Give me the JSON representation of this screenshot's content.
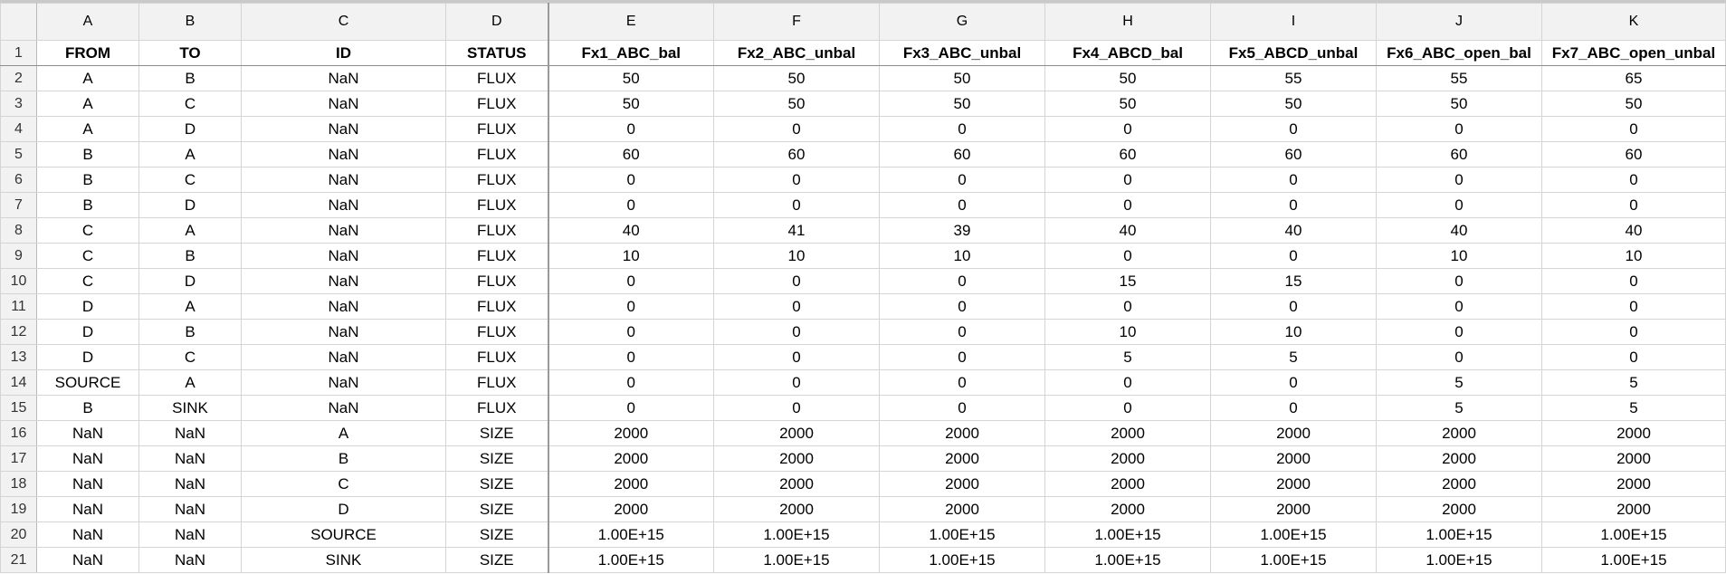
{
  "columns": [
    "A",
    "B",
    "C",
    "D",
    "E",
    "F",
    "G",
    "H",
    "I",
    "J",
    "K"
  ],
  "rows": [
    {
      "n": "1",
      "cells": [
        "FROM",
        "TO",
        "ID",
        "STATUS",
        "Fx1_ABC_bal",
        "Fx2_ABC_unbal",
        "Fx3_ABC_unbal",
        "Fx4_ABCD_bal",
        "Fx5_ABCD_unbal",
        "Fx6_ABC_open_bal",
        "Fx7_ABC_open_unbal"
      ]
    },
    {
      "n": "2",
      "cells": [
        "A",
        "B",
        "NaN",
        "FLUX",
        "50",
        "50",
        "50",
        "50",
        "55",
        "55",
        "65"
      ]
    },
    {
      "n": "3",
      "cells": [
        "A",
        "C",
        "NaN",
        "FLUX",
        "50",
        "50",
        "50",
        "50",
        "50",
        "50",
        "50"
      ]
    },
    {
      "n": "4",
      "cells": [
        "A",
        "D",
        "NaN",
        "FLUX",
        "0",
        "0",
        "0",
        "0",
        "0",
        "0",
        "0"
      ]
    },
    {
      "n": "5",
      "cells": [
        "B",
        "A",
        "NaN",
        "FLUX",
        "60",
        "60",
        "60",
        "60",
        "60",
        "60",
        "60"
      ]
    },
    {
      "n": "6",
      "cells": [
        "B",
        "C",
        "NaN",
        "FLUX",
        "0",
        "0",
        "0",
        "0",
        "0",
        "0",
        "0"
      ]
    },
    {
      "n": "7",
      "cells": [
        "B",
        "D",
        "NaN",
        "FLUX",
        "0",
        "0",
        "0",
        "0",
        "0",
        "0",
        "0"
      ]
    },
    {
      "n": "8",
      "cells": [
        "C",
        "A",
        "NaN",
        "FLUX",
        "40",
        "41",
        "39",
        "40",
        "40",
        "40",
        "40"
      ]
    },
    {
      "n": "9",
      "cells": [
        "C",
        "B",
        "NaN",
        "FLUX",
        "10",
        "10",
        "10",
        "0",
        "0",
        "10",
        "10"
      ]
    },
    {
      "n": "10",
      "cells": [
        "C",
        "D",
        "NaN",
        "FLUX",
        "0",
        "0",
        "0",
        "15",
        "15",
        "0",
        "0"
      ]
    },
    {
      "n": "11",
      "cells": [
        "D",
        "A",
        "NaN",
        "FLUX",
        "0",
        "0",
        "0",
        "0",
        "0",
        "0",
        "0"
      ]
    },
    {
      "n": "12",
      "cells": [
        "D",
        "B",
        "NaN",
        "FLUX",
        "0",
        "0",
        "0",
        "10",
        "10",
        "0",
        "0"
      ]
    },
    {
      "n": "13",
      "cells": [
        "D",
        "C",
        "NaN",
        "FLUX",
        "0",
        "0",
        "0",
        "5",
        "5",
        "0",
        "0"
      ]
    },
    {
      "n": "14",
      "cells": [
        "SOURCE",
        "A",
        "NaN",
        "FLUX",
        "0",
        "0",
        "0",
        "0",
        "0",
        "5",
        "5"
      ]
    },
    {
      "n": "15",
      "cells": [
        "B",
        "SINK",
        "NaN",
        "FLUX",
        "0",
        "0",
        "0",
        "0",
        "0",
        "5",
        "5"
      ]
    },
    {
      "n": "16",
      "cells": [
        "NaN",
        "NaN",
        "A",
        "SIZE",
        "2000",
        "2000",
        "2000",
        "2000",
        "2000",
        "2000",
        "2000"
      ]
    },
    {
      "n": "17",
      "cells": [
        "NaN",
        "NaN",
        "B",
        "SIZE",
        "2000",
        "2000",
        "2000",
        "2000",
        "2000",
        "2000",
        "2000"
      ]
    },
    {
      "n": "18",
      "cells": [
        "NaN",
        "NaN",
        "C",
        "SIZE",
        "2000",
        "2000",
        "2000",
        "2000",
        "2000",
        "2000",
        "2000"
      ]
    },
    {
      "n": "19",
      "cells": [
        "NaN",
        "NaN",
        "D",
        "SIZE",
        "2000",
        "2000",
        "2000",
        "2000",
        "2000",
        "2000",
        "2000"
      ]
    },
    {
      "n": "20",
      "cells": [
        "NaN",
        "NaN",
        "SOURCE",
        "SIZE",
        "1.00E+15",
        "1.00E+15",
        "1.00E+15",
        "1.00E+15",
        "1.00E+15",
        "1.00E+15",
        "1.00E+15"
      ]
    },
    {
      "n": "21",
      "cells": [
        "NaN",
        "NaN",
        "SINK",
        "SIZE",
        "1.00E+15",
        "1.00E+15",
        "1.00E+15",
        "1.00E+15",
        "1.00E+15",
        "1.00E+15",
        "1.00E+15"
      ]
    }
  ]
}
